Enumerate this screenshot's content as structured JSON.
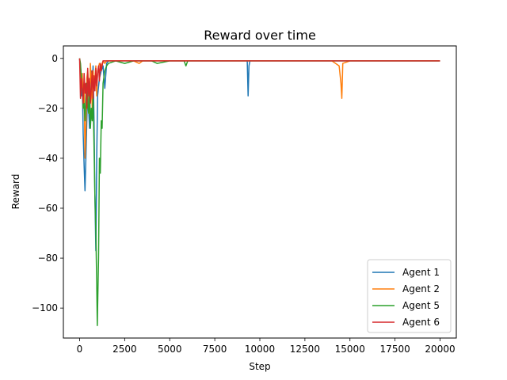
{
  "chart_data": {
    "type": "line",
    "title": "Reward over time",
    "xlabel": "Step",
    "ylabel": "Reward",
    "xlim": [
      -900,
      20900
    ],
    "ylim": [
      -112,
      5
    ],
    "x_ticks": [
      0,
      2500,
      5000,
      7500,
      10000,
      12500,
      15000,
      17500,
      20000
    ],
    "x_tick_labels": [
      "0",
      "2500",
      "5000",
      "7500",
      "10000",
      "12500",
      "15000",
      "17500",
      "20000"
    ],
    "y_ticks": [
      0,
      -20,
      -40,
      -60,
      -80,
      -100
    ],
    "y_tick_labels": [
      "0",
      "−20",
      "−40",
      "−60",
      "−80",
      "−100"
    ],
    "legend_position": "lower-right",
    "grid": false,
    "series": [
      {
        "name": "Agent 1",
        "color": "#1f77b4",
        "x": [
          0,
          50,
          100,
          150,
          200,
          250,
          300,
          350,
          400,
          450,
          500,
          550,
          600,
          650,
          700,
          750,
          800,
          850,
          900,
          950,
          1000,
          1100,
          1200,
          1300,
          1400,
          1500,
          1600,
          1800,
          2000,
          2500,
          3000,
          4000,
          5000,
          6000,
          7000,
          8000,
          9000,
          9300,
          9350,
          9400,
          9450,
          9500,
          10000,
          12000,
          14000,
          14500,
          15000,
          17000,
          20000
        ],
        "y": [
          0,
          -5,
          -15,
          -8,
          -30,
          -43,
          -53,
          -40,
          -25,
          -12,
          -20,
          -28,
          -8,
          -5,
          -12,
          -3,
          -25,
          -55,
          -77,
          -40,
          -15,
          -8,
          -5,
          -3,
          -12,
          -2,
          -1,
          -1,
          -1,
          -1,
          -1,
          -1,
          -1,
          -1,
          -1,
          -1,
          -1,
          -1,
          -15,
          -3,
          -1,
          -1,
          -1,
          -1,
          -1,
          -1,
          -1,
          -1,
          -1
        ]
      },
      {
        "name": "Agent 2",
        "color": "#ff7f0e",
        "x": [
          0,
          50,
          100,
          150,
          200,
          250,
          300,
          350,
          400,
          450,
          500,
          550,
          600,
          650,
          700,
          750,
          800,
          850,
          900,
          950,
          1000,
          1100,
          1200,
          1300,
          1400,
          1500,
          1600,
          2000,
          2500,
          3000,
          3300,
          3500,
          4000,
          5000,
          6000,
          8000,
          10000,
          12000,
          14000,
          14400,
          14500,
          14550,
          14600,
          15000,
          18000,
          20000
        ],
        "y": [
          0,
          -3,
          -10,
          -6,
          -20,
          -12,
          -40,
          -28,
          -8,
          -5,
          -15,
          -22,
          -2,
          -10,
          -20,
          -5,
          -12,
          -8,
          -3,
          -15,
          -5,
          -2,
          -3,
          -1,
          -2,
          -1,
          -1,
          -1,
          -1,
          -1,
          -2,
          -1,
          -1,
          -1,
          -1,
          -1,
          -1,
          -1,
          -1,
          -3,
          -10,
          -16,
          -2,
          -1,
          -1,
          -1
        ]
      },
      {
        "name": "Agent 5",
        "color": "#2ca02c",
        "x": [
          0,
          50,
          100,
          150,
          200,
          250,
          300,
          350,
          400,
          450,
          500,
          550,
          600,
          650,
          700,
          750,
          800,
          850,
          900,
          950,
          980,
          1000,
          1050,
          1100,
          1150,
          1200,
          1250,
          1300,
          1400,
          1500,
          1600,
          2000,
          2500,
          3000,
          4000,
          4300,
          5000,
          5800,
          5900,
          6000,
          7000,
          8000,
          10000,
          12000,
          14000,
          15000,
          17000,
          20000
        ],
        "y": [
          0,
          -2,
          -8,
          -12,
          -20,
          -18,
          -25,
          -15,
          -10,
          -18,
          -22,
          -12,
          -28,
          -20,
          -25,
          -15,
          -35,
          -55,
          -70,
          -90,
          -107,
          -100,
          -80,
          -40,
          -46,
          -25,
          -28,
          -10,
          -5,
          -3,
          -2,
          -1,
          -2,
          -1,
          -1,
          -2,
          -1,
          -1,
          -3,
          -1,
          -1,
          -1,
          -1,
          -1,
          -1,
          -1,
          -1,
          -1
        ]
      },
      {
        "name": "Agent 6",
        "color": "#d62728",
        "x": [
          0,
          50,
          100,
          150,
          200,
          250,
          300,
          350,
          400,
          450,
          500,
          550,
          600,
          650,
          700,
          750,
          800,
          850,
          900,
          950,
          1000,
          1050,
          1100,
          1150,
          1200,
          1300,
          1400,
          1500,
          2000,
          3000,
          5000,
          8000,
          10000,
          12000,
          15000,
          18000,
          20000
        ],
        "y": [
          0,
          -16,
          -8,
          -12,
          -18,
          -6,
          -14,
          -10,
          -20,
          -4,
          -15,
          -8,
          -18,
          -12,
          -5,
          -16,
          -7,
          -13,
          -4,
          -11,
          -6,
          -3,
          -9,
          -2,
          -5,
          -1,
          -1,
          -1,
          -1,
          -1,
          -1,
          -1,
          -1,
          -1,
          -1,
          -1,
          -1
        ]
      }
    ]
  }
}
